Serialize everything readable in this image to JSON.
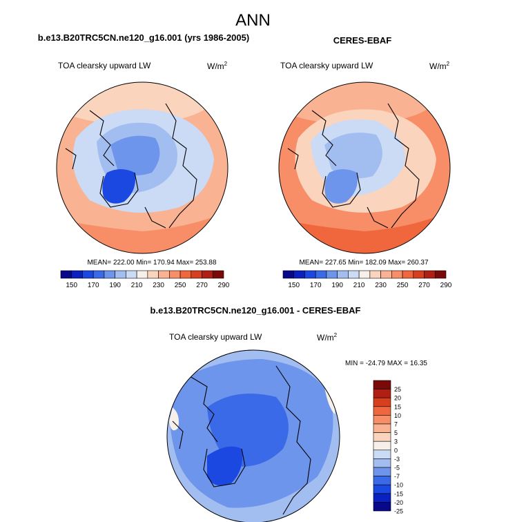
{
  "season": "ANN",
  "colors": {
    "abs_scale": [
      "#08088a",
      "#0a20c0",
      "#1a48e0",
      "#3a6ae8",
      "#6e95ec",
      "#a2bdf0",
      "#cbdaf5",
      "#f7f0ea",
      "#fbd4bd",
      "#f9b392",
      "#f78e67",
      "#f0663d",
      "#d6401f",
      "#b01f14",
      "#7a0a08"
    ],
    "diff_scale": [
      "#08088a",
      "#0a20c0",
      "#1a48e0",
      "#3a6ae8",
      "#6e95ec",
      "#a2bdf0",
      "#cbdaf5",
      "#f7f0ea",
      "#fbd4bd",
      "#f9b392",
      "#f78e67",
      "#f0663d",
      "#d6401f",
      "#b01f14",
      "#7a0a08"
    ],
    "coastline": "#000000"
  },
  "chart_data": [
    {
      "type": "map",
      "projection": "north polar stereographic",
      "title": "b.e13.B20TRC5CN.ne120_g16.001 (yrs 1986-2005)",
      "field": "TOA clearsky upward LW",
      "units_base": "W/m",
      "units_exp": "2",
      "stats": "MEAN= 222.00   Min= 170.94   Max= 253.88",
      "mean": 222.0,
      "min": 170.94,
      "max": 253.88,
      "colorbar_labels": [
        "150",
        "170",
        "190",
        "210",
        "230",
        "250",
        "270",
        "290"
      ],
      "levels": [
        150,
        160,
        170,
        180,
        190,
        200,
        210,
        220,
        230,
        240,
        250,
        260,
        270,
        280,
        290
      ]
    },
    {
      "type": "map",
      "projection": "north polar stereographic",
      "title": "CERES-EBAF",
      "field": "TOA clearsky upward LW",
      "units_base": "W/m",
      "units_exp": "2",
      "stats": "MEAN= 227.65   Min= 182.09   Max= 260.37",
      "mean": 227.65,
      "min": 182.09,
      "max": 260.37,
      "colorbar_labels": [
        "150",
        "170",
        "190",
        "210",
        "230",
        "250",
        "270",
        "290"
      ],
      "levels": [
        150,
        160,
        170,
        180,
        190,
        200,
        210,
        220,
        230,
        240,
        250,
        260,
        270,
        280,
        290
      ]
    },
    {
      "type": "map",
      "projection": "north polar stereographic",
      "title": "b.e13.B20TRC5CN.ne120_g16.001 - CERES-EBAF",
      "field": "TOA clearsky upward LW",
      "units_base": "W/m",
      "units_exp": "2",
      "stats": "MIN = -24.79  MAX =  16.35",
      "min": -24.79,
      "max": 16.35,
      "colorbar_labels": [
        "25",
        "20",
        "15",
        "10",
        "7",
        "5",
        "3",
        "0",
        "-3",
        "-5",
        "-7",
        "-10",
        "-15",
        "-20",
        "-25"
      ],
      "levels": [
        -25,
        -20,
        -15,
        -10,
        -7,
        -5,
        -3,
        0,
        3,
        5,
        7,
        10,
        15,
        20,
        25
      ]
    }
  ]
}
